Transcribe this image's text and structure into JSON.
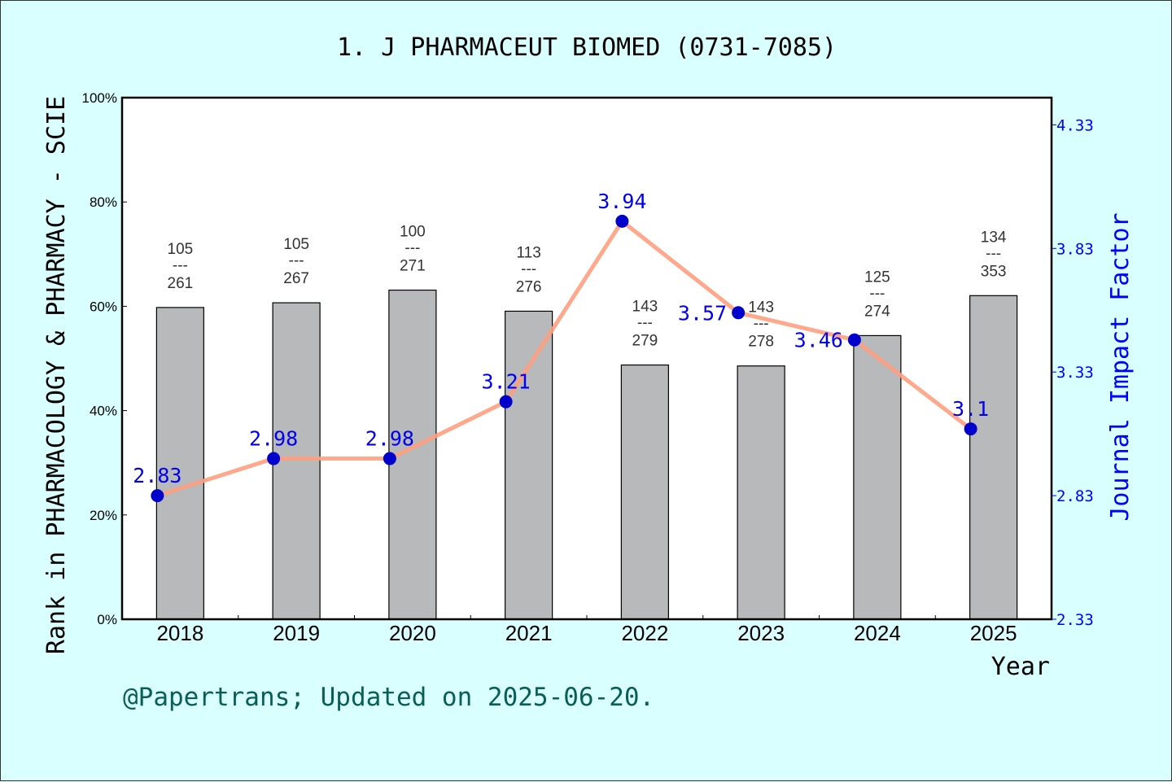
{
  "chart_data": {
    "type": "bar+line",
    "title": "1. J PHARMACEUT BIOMED (0731-7085)",
    "xlabel": "Year",
    "ylabel_left": "Rank in PHARMACOLOGY & PHARMACY - SCIE",
    "ylabel_right": "Journal Impact Factor",
    "categories": [
      "2018",
      "2019",
      "2020",
      "2021",
      "2022",
      "2023",
      "2024",
      "2025"
    ],
    "rank": [
      105,
      105,
      100,
      113,
      143,
      143,
      125,
      134
    ],
    "total": [
      261,
      267,
      271,
      276,
      279,
      278,
      274,
      353
    ],
    "rank_separator": "---",
    "impact_factor": [
      2.83,
      2.98,
      2.98,
      3.21,
      3.94,
      3.57,
      3.46,
      3.1
    ],
    "impact_factor_labels": [
      "2.83",
      "2.98",
      "2.98",
      "3.21",
      "3.94",
      "3.57",
      "3.46",
      "3.1"
    ],
    "left_ylim": [
      0,
      100
    ],
    "left_ticks": [
      "0%",
      "20%",
      "40%",
      "60%",
      "80%",
      "100%"
    ],
    "right_ylim": [
      2.33,
      4.44
    ],
    "right_ticks": [
      "2.33",
      "2.83",
      "3.33",
      "3.83",
      "4.33"
    ],
    "colors": {
      "bar": "#b8b9bb",
      "line": "#ff9f7f",
      "point": "#0000cc",
      "if_text": "#0000ee",
      "right_axis": "#0000ff",
      "background": "#d9ffff",
      "footer": "#0a5f55"
    }
  },
  "footer": "@Papertrans; Updated on 2025-06-20."
}
